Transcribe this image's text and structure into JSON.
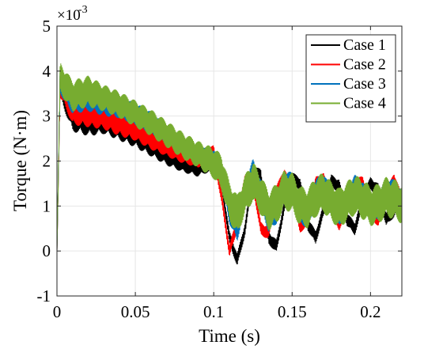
{
  "chart_data": {
    "type": "line",
    "xlabel": "Time (s)",
    "ylabel": "Torque (N·m)",
    "y_multiplier": "×10",
    "y_multiplier_exponent": "-3",
    "xlim": [
      0,
      0.22
    ],
    "ylim": [
      -1,
      5
    ],
    "xticks": [
      0,
      0.05,
      0.1,
      0.15,
      0.2
    ],
    "xtick_labels": [
      "0",
      "0.05",
      "0.1",
      "0.15",
      "0.2"
    ],
    "yticks": [
      -1,
      0,
      1,
      2,
      3,
      4,
      5
    ],
    "ytick_labels": [
      "-1",
      "0",
      "1",
      "2",
      "3",
      "4",
      "5"
    ],
    "grid": true,
    "legend_position": "top-right",
    "series": [
      {
        "name": "Case 1",
        "color": "#000000",
        "x": [
          0,
          0.002,
          0.005,
          0.01,
          0.02,
          0.03,
          0.04,
          0.05,
          0.06,
          0.07,
          0.08,
          0.09,
          0.1,
          0.105,
          0.11,
          0.115,
          0.12,
          0.125,
          0.13,
          0.135,
          0.14,
          0.145,
          0.15,
          0.155,
          0.16,
          0.165,
          0.17,
          0.175,
          0.18,
          0.185,
          0.19,
          0.195,
          0.2,
          0.205,
          0.21,
          0.215,
          0.22
        ],
        "y": [
          0,
          3.7,
          3.4,
          3.0,
          2.9,
          2.9,
          2.75,
          2.6,
          2.35,
          2.15,
          1.95,
          1.85,
          1.95,
          1.5,
          0.3,
          -0.2,
          0.5,
          1.7,
          1.7,
          0.3,
          0.1,
          1.0,
          1.6,
          1.5,
          0.6,
          0.3,
          0.9,
          1.55,
          1.45,
          0.7,
          0.5,
          1.1,
          1.5,
          1.35,
          0.7,
          0.9,
          1.3
        ],
        "band_halfwidth": [
          0,
          0.3,
          0.3,
          0.35,
          0.35,
          0.3,
          0.3,
          0.3,
          0.25,
          0.25,
          0.2,
          0.2,
          0.15,
          0.1,
          0.15,
          0.15,
          0.15,
          0.15,
          0.15,
          0.15,
          0.15,
          0.15,
          0.15,
          0.15,
          0.15,
          0.15,
          0.15,
          0.15,
          0.15,
          0.15,
          0.15,
          0.15,
          0.15,
          0.15,
          0.15,
          0.15,
          0.15
        ]
      },
      {
        "name": "Case 2",
        "color": "#ff0000",
        "x": [
          0,
          0.002,
          0.005,
          0.01,
          0.02,
          0.03,
          0.04,
          0.05,
          0.06,
          0.07,
          0.08,
          0.09,
          0.1,
          0.105,
          0.11,
          0.115,
          0.12,
          0.125,
          0.13,
          0.135,
          0.14,
          0.145,
          0.15,
          0.155,
          0.16,
          0.165,
          0.17,
          0.175,
          0.18,
          0.185,
          0.19,
          0.195,
          0.2,
          0.205,
          0.21,
          0.215,
          0.22
        ],
        "y": [
          0,
          3.7,
          3.5,
          3.1,
          3.05,
          3.0,
          2.85,
          2.7,
          2.5,
          2.3,
          2.15,
          2.05,
          2.2,
          1.2,
          0.0,
          0.6,
          1.6,
          1.55,
          0.5,
          0.4,
          1.3,
          1.7,
          1.3,
          0.55,
          0.7,
          1.5,
          1.6,
          1.0,
          0.6,
          1.0,
          1.55,
          1.5,
          0.85,
          0.7,
          1.2,
          1.6,
          1.1
        ],
        "band_halfwidth": [
          0,
          0.3,
          0.3,
          0.3,
          0.3,
          0.3,
          0.3,
          0.25,
          0.25,
          0.2,
          0.2,
          0.2,
          0.15,
          0.15,
          0.15,
          0.15,
          0.15,
          0.15,
          0.15,
          0.15,
          0.15,
          0.15,
          0.15,
          0.15,
          0.15,
          0.15,
          0.15,
          0.15,
          0.15,
          0.15,
          0.15,
          0.15,
          0.15,
          0.15,
          0.15,
          0.15,
          0.15
        ]
      },
      {
        "name": "Case 3",
        "color": "#0072bd",
        "x": [
          0,
          0.002,
          0.005,
          0.01,
          0.02,
          0.03,
          0.04,
          0.05,
          0.06,
          0.07,
          0.08,
          0.09,
          0.1,
          0.105,
          0.11,
          0.115,
          0.12,
          0.125,
          0.13,
          0.135,
          0.14,
          0.145,
          0.15,
          0.155,
          0.16,
          0.165,
          0.17,
          0.175,
          0.18,
          0.185,
          0.19,
          0.195,
          0.2,
          0.205,
          0.21,
          0.215,
          0.22
        ],
        "y": [
          0,
          3.8,
          3.6,
          3.35,
          3.4,
          3.3,
          3.2,
          3.05,
          2.85,
          2.6,
          2.35,
          2.15,
          2.05,
          1.8,
          0.9,
          0.5,
          1.3,
          1.75,
          1.3,
          0.7,
          0.9,
          1.5,
          1.45,
          0.9,
          0.8,
          1.3,
          1.45,
          1.1,
          0.85,
          1.15,
          1.4,
          1.25,
          0.95,
          1.0,
          1.3,
          1.3,
          1.05
        ],
        "band_halfwidth": [
          0,
          0.3,
          0.3,
          0.3,
          0.3,
          0.3,
          0.25,
          0.25,
          0.25,
          0.2,
          0.2,
          0.2,
          0.2,
          0.2,
          0.3,
          0.3,
          0.3,
          0.3,
          0.3,
          0.3,
          0.3,
          0.3,
          0.3,
          0.3,
          0.3,
          0.3,
          0.3,
          0.3,
          0.3,
          0.3,
          0.3,
          0.3,
          0.3,
          0.3,
          0.3,
          0.3,
          0.3
        ]
      },
      {
        "name": "Case 4",
        "color": "#77ac30",
        "x": [
          0,
          0.002,
          0.005,
          0.01,
          0.02,
          0.03,
          0.04,
          0.05,
          0.06,
          0.07,
          0.08,
          0.09,
          0.1,
          0.105,
          0.11,
          0.115,
          0.12,
          0.125,
          0.13,
          0.135,
          0.14,
          0.145,
          0.15,
          0.155,
          0.16,
          0.165,
          0.17,
          0.175,
          0.18,
          0.185,
          0.19,
          0.195,
          0.2,
          0.205,
          0.21,
          0.215,
          0.22
        ],
        "y": [
          0,
          3.85,
          3.7,
          3.45,
          3.55,
          3.4,
          3.25,
          3.05,
          2.85,
          2.6,
          2.35,
          2.15,
          1.95,
          1.75,
          1.1,
          0.8,
          1.25,
          1.55,
          1.25,
          0.9,
          1.05,
          1.35,
          1.3,
          1.0,
          0.95,
          1.2,
          1.3,
          1.1,
          0.95,
          1.1,
          1.25,
          1.15,
          1.0,
          1.05,
          1.2,
          1.15,
          1.05
        ],
        "band_halfwidth": [
          0,
          0.35,
          0.35,
          0.35,
          0.35,
          0.3,
          0.3,
          0.3,
          0.3,
          0.3,
          0.3,
          0.3,
          0.35,
          0.4,
          0.45,
          0.45,
          0.45,
          0.45,
          0.45,
          0.45,
          0.45,
          0.45,
          0.45,
          0.45,
          0.45,
          0.45,
          0.45,
          0.45,
          0.45,
          0.45,
          0.45,
          0.45,
          0.45,
          0.45,
          0.45,
          0.45,
          0.45
        ]
      }
    ]
  }
}
